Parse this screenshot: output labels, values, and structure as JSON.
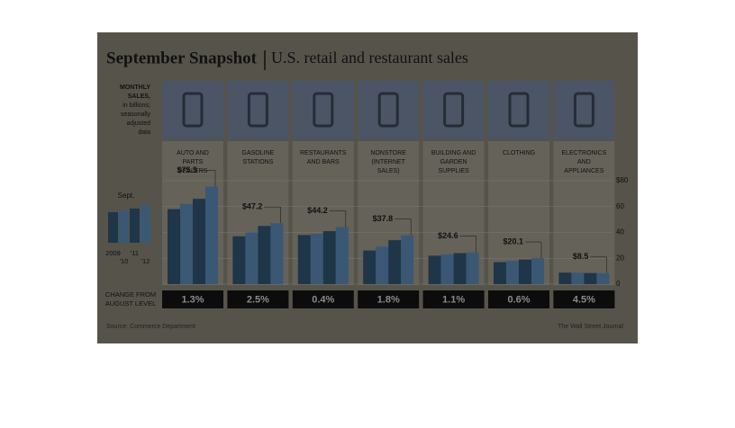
{
  "chart_data": {
    "type": "bar",
    "title": "September Snapshot",
    "subtitle": "U.S. retail and restaurant sales",
    "y_label": [
      "MONTHLY",
      "SALES,",
      "in billions;",
      "seasonally",
      "adjusted",
      "data"
    ],
    "legend_label": "Sept.",
    "categories": [
      [
        "AUTO AND",
        "PARTS",
        "DEALERS"
      ],
      [
        "GASOLINE",
        "STATIONS"
      ],
      [
        "RESTAURANTS",
        "AND BARS"
      ],
      [
        "NONSTORE",
        "(INTERNET",
        "SALES)"
      ],
      [
        "BUILDING AND",
        "GARDEN",
        "SUPPLIES"
      ],
      [
        "CLOTHING"
      ],
      [
        "ELECTRONICS",
        "AND",
        "APPLIANCES"
      ]
    ],
    "series": [
      {
        "name": "2009",
        "color": "#1f3548",
        "values": [
          58,
          37,
          38,
          26,
          22,
          17,
          8.9
        ]
      },
      {
        "name": "'10",
        "color": "#3a5873",
        "values": [
          62,
          40,
          39,
          29,
          23,
          18,
          8.8
        ]
      },
      {
        "name": "'11",
        "color": "#1f3548",
        "values": [
          66,
          45,
          41,
          34,
          24,
          19,
          8.6
        ]
      },
      {
        "name": "'12",
        "color": "#3a5873",
        "values": [
          75.5,
          47.2,
          44.2,
          37.8,
          24.6,
          20.1,
          8.5
        ],
        "value_labels": [
          "$75.5",
          "$47.2",
          "$44.2",
          "$37.8",
          "$24.6",
          "$20.1",
          "$8.5"
        ]
      }
    ],
    "change_label": [
      "CHANGE FROM",
      "AUGUST LEVEL"
    ],
    "change": [
      1.3,
      2.5,
      0.4,
      1.8,
      1.1,
      0.6,
      4.5
    ],
    "change_labels": [
      "1.3%",
      "2.5%",
      "0.4%",
      "1.8%",
      "1.1%",
      "0.6%",
      "4.5%"
    ],
    "ylim": [
      0,
      80
    ],
    "yticks": [
      {
        "value": 80,
        "label": "$80"
      },
      60,
      40,
      20,
      0
    ],
    "grid": true,
    "source": "Source: Commerce Department",
    "credit": "The Wall Street Journal"
  }
}
